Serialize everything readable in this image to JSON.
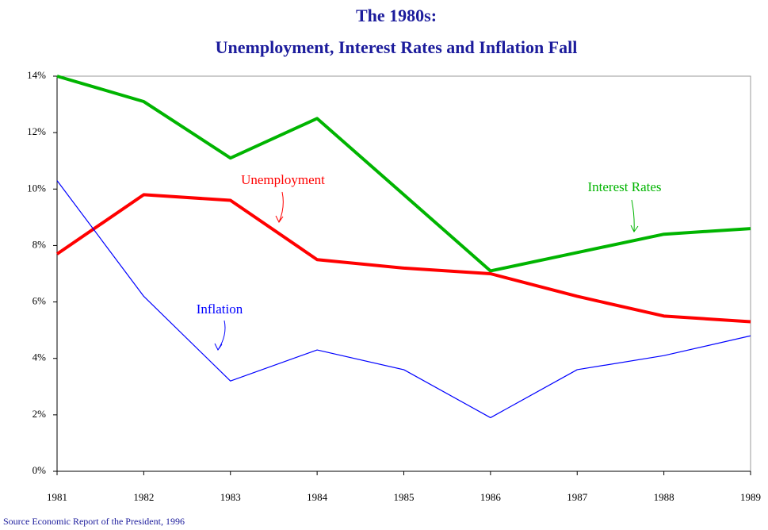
{
  "chart_data": {
    "type": "line",
    "title": "The 1980s:",
    "subtitle": "Unemployment, Interest Rates and Inflation Fall",
    "source": "Source Economic Report of the President, 1996",
    "x": [
      1981,
      1982,
      1983,
      1984,
      1985,
      1986,
      1987,
      1988,
      1989
    ],
    "xlim": [
      1981,
      1989
    ],
    "xticks": [
      1981,
      1982,
      1983,
      1984,
      1985,
      1986,
      1987,
      1988,
      1989
    ],
    "ylim": [
      0,
      14
    ],
    "yticks": [
      {
        "value": 0,
        "label": "0%"
      },
      {
        "value": 2,
        "label": "2%"
      },
      {
        "value": 4,
        "label": "4%"
      },
      {
        "value": 6,
        "label": "6%"
      },
      {
        "value": 8,
        "label": "8%"
      },
      {
        "value": 10,
        "label": "10%"
      },
      {
        "value": 12,
        "label": "12%"
      },
      {
        "value": 14,
        "label": "14%"
      }
    ],
    "series": [
      {
        "name": "Interest Rates",
        "color": "#00b400",
        "values": [
          14.0,
          13.1,
          11.1,
          12.5,
          9.8,
          7.1,
          7.75,
          8.4,
          8.6
        ]
      },
      {
        "name": "Unemployment",
        "color": "#ff0000",
        "values": [
          7.7,
          9.8,
          9.6,
          7.5,
          7.2,
          7.0,
          6.2,
          5.5,
          5.3
        ]
      },
      {
        "name": "Inflation",
        "color": "#0000ff",
        "values": [
          10.3,
          6.2,
          3.2,
          4.3,
          3.6,
          1.9,
          3.6,
          4.1,
          4.8
        ]
      }
    ]
  }
}
